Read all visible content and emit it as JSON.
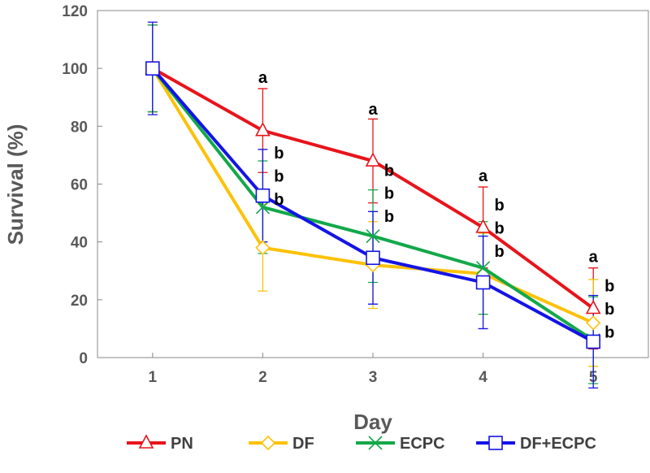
{
  "chart_data": {
    "type": "line",
    "xlabel": "Day",
    "ylabel": "Survival (%)",
    "x": [
      1,
      2,
      3,
      4,
      5
    ],
    "xticks": [
      "1",
      "2",
      "3",
      "4",
      "5"
    ],
    "yticks": [
      "0",
      "20",
      "40",
      "60",
      "80",
      "100",
      "120"
    ],
    "ylim": [
      0,
      120
    ],
    "xlim": [
      0.5,
      5.5
    ],
    "grid": false,
    "legend": "bottom",
    "series": [
      {
        "name": "PN",
        "color": "#e8141b",
        "marker": "triangle",
        "values": [
          100,
          78.5,
          68,
          45,
          17
        ],
        "error": [
          15,
          14.5,
          14.5,
          14,
          14
        ]
      },
      {
        "name": "DF",
        "color": "#fcc20a",
        "marker": "diamond",
        "values": [
          100,
          38,
          32,
          29,
          12
        ],
        "error": [
          15,
          15,
          15,
          14,
          15
        ]
      },
      {
        "name": "ECPC",
        "color": "#13a84a",
        "marker": "x",
        "values": [
          100,
          52,
          42,
          31,
          6
        ],
        "error": [
          15,
          16,
          16,
          16,
          15
        ]
      },
      {
        "name": "DF+ECPC",
        "color": "#1414e6",
        "marker": "square",
        "values": [
          100,
          56,
          34.5,
          26,
          5.5
        ],
        "error": [
          16,
          16,
          16,
          16,
          16
        ]
      }
    ],
    "annotations": [
      {
        "x": 2,
        "labels": [
          "a",
          "b",
          "b",
          "b"
        ]
      },
      {
        "x": 3,
        "labels": [
          "a",
          "b",
          "b",
          "b"
        ]
      },
      {
        "x": 4,
        "labels": [
          "a",
          "b",
          "b",
          "b"
        ]
      },
      {
        "x": 5,
        "labels": [
          "a",
          "b",
          "b",
          "b"
        ]
      }
    ]
  }
}
